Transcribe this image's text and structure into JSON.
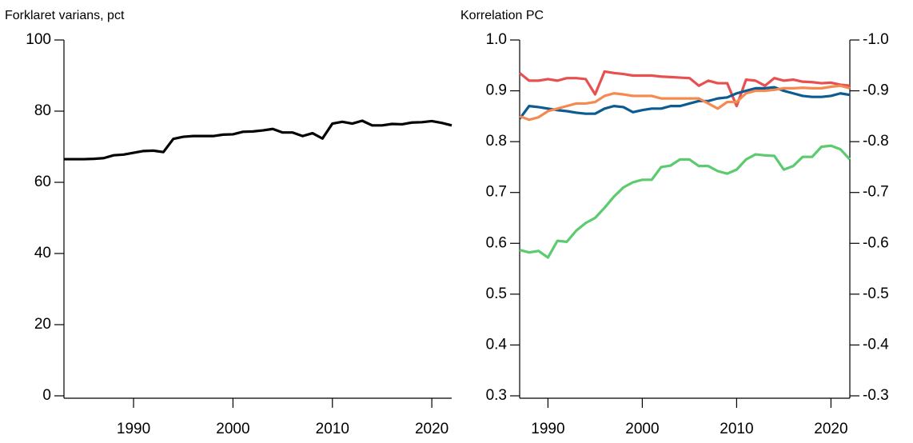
{
  "chart_data": [
    {
      "type": "line",
      "title": "Forklaret varians, pct",
      "x": [
        1983,
        1984,
        1985,
        1986,
        1987,
        1988,
        1989,
        1990,
        1991,
        1992,
        1993,
        1994,
        1995,
        1996,
        1997,
        1998,
        1999,
        2000,
        2001,
        2002,
        2003,
        2004,
        2005,
        2006,
        2007,
        2008,
        2009,
        2010,
        2011,
        2012,
        2013,
        2014,
        2015,
        2016,
        2017,
        2018,
        2019,
        2020,
        2021,
        2022
      ],
      "series": [
        {
          "color": "#000000",
          "values": [
            66.5,
            66.5,
            66.5,
            66.6,
            66.8,
            67.6,
            67.8,
            68.3,
            68.8,
            68.9,
            68.5,
            72.2,
            72.8,
            73,
            73,
            73,
            73.4,
            73.5,
            74.2,
            74.3,
            74.6,
            75,
            74,
            74,
            73,
            73.8,
            72.3,
            76.5,
            77,
            76.5,
            77.3,
            76,
            76,
            76.4,
            76.3,
            76.8,
            76.9,
            77.2,
            76.7,
            76
          ]
        }
      ],
      "xlim": [
        1983,
        2022
      ],
      "xticks": [
        1990,
        2000,
        2010,
        2020
      ],
      "ylim": [
        0,
        100
      ],
      "yticks": [
        0,
        20,
        40,
        60,
        80,
        100
      ]
    },
    {
      "type": "line",
      "title": "Korrelation PC",
      "x": [
        1987,
        1988,
        1989,
        1990,
        1991,
        1992,
        1993,
        1994,
        1995,
        1996,
        1997,
        1998,
        1999,
        2000,
        2001,
        2002,
        2003,
        2004,
        2005,
        2006,
        2007,
        2008,
        2009,
        2010,
        2011,
        2012,
        2013,
        2014,
        2015,
        2016,
        2017,
        2018,
        2019,
        2020,
        2021,
        2022
      ],
      "series": [
        {
          "color": "#e8504f",
          "values": [
            0.935,
            0.92,
            0.92,
            0.923,
            0.92,
            0.925,
            0.925,
            0.923,
            0.893,
            0.938,
            0.935,
            0.933,
            0.93,
            0.93,
            0.93,
            0.928,
            0.927,
            0.926,
            0.925,
            0.91,
            0.92,
            0.915,
            0.915,
            0.87,
            0.922,
            0.92,
            0.91,
            0.925,
            0.92,
            0.922,
            0.918,
            0.917,
            0.915,
            0.916,
            0.912,
            0.91
          ]
        },
        {
          "color": "#0d5c91",
          "values": [
            0.845,
            0.87,
            0.868,
            0.865,
            0.862,
            0.86,
            0.857,
            0.855,
            0.855,
            0.865,
            0.87,
            0.868,
            0.858,
            0.862,
            0.865,
            0.865,
            0.87,
            0.87,
            0.875,
            0.88,
            0.88,
            0.885,
            0.887,
            0.895,
            0.9,
            0.905,
            0.905,
            0.907,
            0.9,
            0.895,
            0.89,
            0.888,
            0.888,
            0.89,
            0.895,
            0.892
          ]
        },
        {
          "color": "#f5894f",
          "values": [
            0.85,
            0.843,
            0.848,
            0.86,
            0.865,
            0.87,
            0.875,
            0.875,
            0.878,
            0.89,
            0.895,
            0.893,
            0.89,
            0.89,
            0.89,
            0.885,
            0.885,
            0.885,
            0.885,
            0.885,
            0.875,
            0.865,
            0.878,
            0.878,
            0.895,
            0.9,
            0.9,
            0.902,
            0.905,
            0.905,
            0.906,
            0.905,
            0.905,
            0.908,
            0.91,
            0.905
          ]
        },
        {
          "color": "#5ccb6f",
          "values": [
            0.587,
            0.582,
            0.585,
            0.572,
            0.605,
            0.603,
            0.625,
            0.64,
            0.65,
            0.67,
            0.692,
            0.71,
            0.72,
            0.725,
            0.725,
            0.75,
            0.753,
            0.765,
            0.765,
            0.752,
            0.752,
            0.742,
            0.737,
            0.745,
            0.765,
            0.775,
            0.773,
            0.772,
            0.745,
            0.752,
            0.77,
            0.77,
            0.79,
            0.792,
            0.785,
            0.765
          ]
        }
      ],
      "xlim": [
        1987,
        2022
      ],
      "xticks": [
        1990,
        2000,
        2010,
        2020
      ],
      "ylim": [
        0.3,
        1.0
      ],
      "yticks": [
        0.3,
        0.4,
        0.5,
        0.6,
        0.7,
        0.8,
        0.9,
        {
          "value": 1.0,
          "label": "1.0"
        }
      ],
      "y2lim": [
        -0.3,
        -1.0
      ],
      "y2ticks": [
        -0.3,
        -0.4,
        -0.5,
        -0.6,
        -0.7,
        -0.8,
        -0.9,
        {
          "value": -1.0,
          "label": "-1.0"
        }
      ]
    }
  ]
}
